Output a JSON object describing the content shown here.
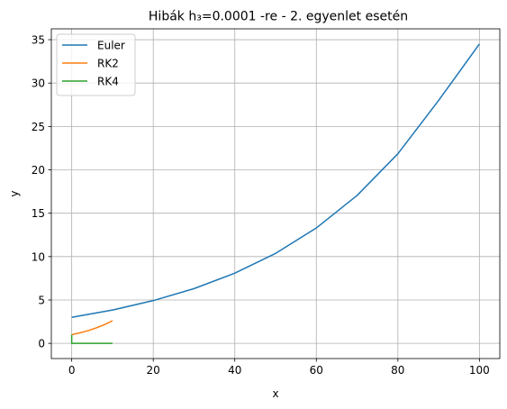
{
  "chart_data": {
    "type": "line",
    "title": "Hibák h₃=0.0001 -re - 2. egyenlet esetén",
    "xlabel": "x",
    "ylabel": "y",
    "xlim": [
      -5,
      105
    ],
    "ylim": [
      -1.75,
      36.25
    ],
    "xticks": [
      0,
      20,
      40,
      60,
      80,
      100
    ],
    "yticks": [
      0,
      5,
      10,
      15,
      20,
      25,
      30,
      35
    ],
    "grid": true,
    "legend_position": "top-left",
    "series": [
      {
        "name": "Euler",
        "color": "#1f77b4",
        "x": [
          0,
          10,
          20,
          30,
          40,
          50,
          60,
          70,
          80,
          90,
          100
        ],
        "y": [
          3.0,
          3.84,
          4.93,
          6.31,
          8.09,
          10.37,
          13.3,
          17.05,
          21.85,
          28.0,
          34.5
        ]
      },
      {
        "name": "RK2",
        "color": "#ff7f0e",
        "x": [
          0,
          2,
          4,
          6,
          8,
          10
        ],
        "y": [
          1.0,
          1.21,
          1.46,
          1.78,
          2.15,
          2.6
        ]
      },
      {
        "name": "RK4",
        "color": "#2ca02c",
        "x": [
          0,
          0,
          10
        ],
        "y": [
          1.0,
          0.0,
          0.0
        ]
      }
    ]
  }
}
